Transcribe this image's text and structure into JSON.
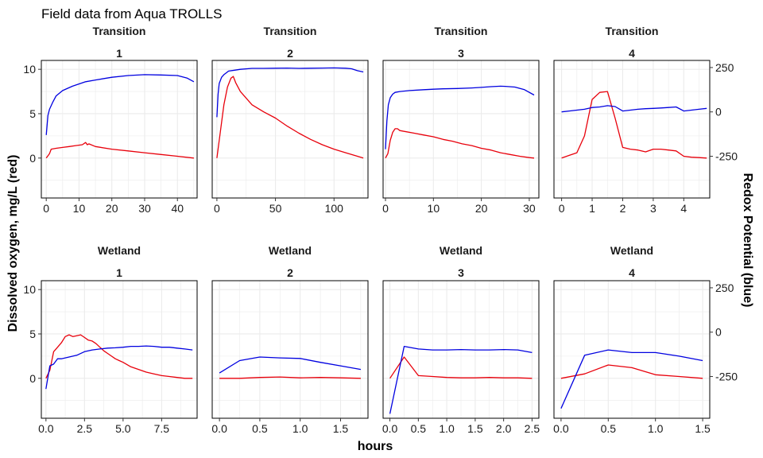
{
  "title": "Field data from Aqua TROLLS",
  "y_left_label": "Dissolved oxygen, mg/L (red)",
  "y_right_label": "Redox Potential (blue)",
  "x_label": "hours",
  "colors": {
    "oxygen": "#e8000b",
    "redox": "#0000e0",
    "grid": "#ebebeb",
    "text": "#000000",
    "axis_text": "#1a1a1a"
  },
  "chart_data": {
    "type": "line",
    "grid": true,
    "y_left": {
      "ylim": [
        -4.5,
        11
      ],
      "ticks": [
        0,
        5,
        10
      ]
    },
    "y_right": {
      "ylim": [
        -485,
        290
      ],
      "ticks": [
        -250,
        0,
        250
      ],
      "note": "secondary axis for redox potential"
    },
    "panels": [
      {
        "group": "Transition",
        "index": "1",
        "xlim": [
          -1.5,
          46
        ],
        "xticks": [
          0,
          10,
          20,
          30,
          40
        ],
        "series": [
          {
            "x": [
              0,
              1,
              1.5,
              3,
              5,
              7,
              9,
              11,
              12,
              12.5,
              13,
              15,
              20,
              25,
              30,
              35,
              40,
              45
            ],
            "y": [
              0,
              0.5,
              1.0,
              1.1,
              1.2,
              1.3,
              1.4,
              1.5,
              1.75,
              1.5,
              1.6,
              1.3,
              1.0,
              0.8,
              0.6,
              0.4,
              0.2,
              0
            ]
          },
          {
            "x": [
              0,
              0.5,
              1,
              2,
              3,
              5,
              8,
              12,
              15,
              20,
              25,
              30,
              35,
              40,
              43,
              45
            ],
            "y": [
              -130,
              -20,
              15,
              55,
              90,
              120,
              145,
              170,
              180,
              195,
              205,
              210,
              208,
              205,
              190,
              170
            ]
          }
        ]
      },
      {
        "group": "Transition",
        "index": "2",
        "xlim": [
          -4,
          129
        ],
        "xticks": [
          0,
          50,
          100
        ],
        "series": [
          {
            "x": [
              0,
              3,
              6,
              9,
              12,
              14,
              16,
              20,
              30,
              40,
              50,
              60,
              70,
              80,
              90,
              100,
              110,
              120,
              125
            ],
            "y": [
              0,
              3,
              6,
              8,
              9,
              9.2,
              8.5,
              7.5,
              6,
              5.2,
              4.5,
              3.6,
              2.8,
              2.1,
              1.5,
              1,
              0.6,
              0.2,
              0
            ]
          },
          {
            "x": [
              0,
              1,
              2,
              4,
              6,
              8,
              10,
              15,
              20,
              30,
              40,
              50,
              60,
              70,
              80,
              90,
              100,
              110,
              115,
              120,
              125
            ],
            "y": [
              -30,
              100,
              160,
              195,
              210,
              220,
              230,
              235,
              240,
              245,
              245,
              246,
              247,
              245,
              246,
              247,
              248,
              246,
              243,
              232,
              225
            ]
          }
        ]
      },
      {
        "group": "Transition",
        "index": "3",
        "xlim": [
          -0.5,
          32
        ],
        "xticks": [
          0,
          10,
          20,
          30
        ],
        "series": [
          {
            "x": [
              0,
              0.5,
              1,
              1.5,
              2,
              2.5,
              3,
              4,
              6,
              8,
              10,
              12,
              14,
              16,
              18,
              20,
              22,
              24,
              26,
              28,
              30,
              31
            ],
            "y": [
              0,
              0.5,
              2,
              2.9,
              3.3,
              3.3,
              3.1,
              3.0,
              2.8,
              2.6,
              2.4,
              2.1,
              1.9,
              1.6,
              1.4,
              1.1,
              0.9,
              0.6,
              0.4,
              0.2,
              0.05,
              0
            ]
          },
          {
            "x": [
              0,
              0.3,
              0.6,
              1,
              1.5,
              2,
              3,
              5,
              8,
              10,
              12,
              15,
              18,
              20,
              22,
              24,
              25,
              27,
              29,
              31
            ],
            "y": [
              -210,
              -50,
              40,
              80,
              100,
              110,
              115,
              120,
              125,
              128,
              130,
              132,
              135,
              138,
              142,
              145,
              144,
              140,
              125,
              95
            ]
          }
        ]
      },
      {
        "group": "Transition",
        "index": "4",
        "xlim": [
          -0.25,
          4.85
        ],
        "xticks": [
          0,
          1,
          2,
          3,
          4
        ],
        "series": [
          {
            "x": [
              0,
              0.25,
              0.5,
              0.75,
              1,
              1.25,
              1.5,
              1.75,
              2,
              2.25,
              2.5,
              2.75,
              3,
              3.25,
              3.5,
              3.75,
              4,
              4.25,
              4.5,
              4.75
            ],
            "y": [
              0,
              0.3,
              0.6,
              2.5,
              6.6,
              7.4,
              7.5,
              4.5,
              1.2,
              1.0,
              0.9,
              0.7,
              1.0,
              1.0,
              0.9,
              0.8,
              0.2,
              0.1,
              0.05,
              0
            ]
          },
          {
            "x": [
              0,
              0.25,
              0.5,
              0.75,
              1,
              1.25,
              1.5,
              1.75,
              2,
              2.25,
              2.5,
              2.75,
              3,
              3.25,
              3.5,
              3.75,
              4,
              4.25,
              4.5,
              4.75
            ],
            "y": [
              0,
              5,
              10,
              15,
              25,
              28,
              35,
              30,
              5,
              10,
              15,
              18,
              20,
              22,
              25,
              28,
              5,
              10,
              15,
              20
            ]
          }
        ]
      },
      {
        "group": "Wetland",
        "index": "1",
        "xlim": [
          -0.3,
          9.8
        ],
        "xticks": [
          0,
          2.5,
          5.0,
          7.5
        ],
        "tick_labels": [
          "0.0",
          "2.5",
          "5.0",
          "7.5"
        ],
        "series": [
          {
            "x": [
              0,
              0.25,
              0.5,
              0.75,
              1,
              1.25,
              1.5,
              1.75,
              2,
              2.25,
              2.5,
              2.75,
              3,
              3.25,
              3.5,
              3.75,
              4,
              4.25,
              4.5,
              4.75,
              5,
              5.5,
              6,
              6.5,
              7,
              7.5,
              8,
              8.5,
              9,
              9.5
            ],
            "y": [
              0,
              0.9,
              3.0,
              3.5,
              4.0,
              4.7,
              4.9,
              4.7,
              4.8,
              4.9,
              4.6,
              4.3,
              4.2,
              3.9,
              3.5,
              3.1,
              2.8,
              2.5,
              2.2,
              2.0,
              1.8,
              1.3,
              1.0,
              0.7,
              0.5,
              0.3,
              0.2,
              0.1,
              0,
              0
            ]
          },
          {
            "x": [
              0,
              0.25,
              0.5,
              0.75,
              1,
              1.5,
              2,
              2.5,
              3,
              3.5,
              4,
              4.5,
              5,
              5.5,
              6,
              6.5,
              7,
              7.5,
              8,
              8.5,
              9,
              9.5
            ],
            "y": [
              -320,
              -190,
              -180,
              -150,
              -150,
              -140,
              -130,
              -110,
              -100,
              -95,
              -90,
              -88,
              -85,
              -80,
              -80,
              -78,
              -80,
              -85,
              -85,
              -90,
              -95,
              -100
            ]
          }
        ]
      },
      {
        "group": "Wetland",
        "index": "2",
        "xlim": [
          -0.09,
          1.84
        ],
        "xticks": [
          0.0,
          0.5,
          1.0,
          1.5
        ],
        "tick_labels": [
          "0.0",
          "0.5",
          "1.0",
          "1.5"
        ],
        "series": [
          {
            "x": [
              0,
              0.25,
              0.5,
              0.75,
              1,
              1.25,
              1.5,
              1.75
            ],
            "y": [
              0,
              0,
              0.1,
              0.15,
              0.05,
              0.1,
              0.05,
              0
            ]
          },
          {
            "x": [
              0,
              0.25,
              0.5,
              0.75,
              1,
              1.25,
              1.5,
              1.75
            ],
            "y": [
              -230,
              -160,
              -140,
              -145,
              -148,
              -170,
              -190,
              -210
            ]
          }
        ]
      },
      {
        "group": "Wetland",
        "index": "3",
        "xlim": [
          -0.12,
          2.62
        ],
        "xticks": [
          0.0,
          0.5,
          1.0,
          1.5,
          2.0,
          2.5
        ],
        "tick_labels": [
          "0.0",
          "0.5",
          "1.0",
          "1.5",
          "2.0",
          "2.5"
        ],
        "series": [
          {
            "x": [
              0,
              0.25,
              0.5,
              0.75,
              1,
              1.25,
              1.5,
              1.75,
              2,
              2.25,
              2.5
            ],
            "y": [
              0,
              2.4,
              0.3,
              0.2,
              0.1,
              0.05,
              0.05,
              0.1,
              0.05,
              0.05,
              0
            ]
          },
          {
            "x": [
              0,
              0.25,
              0.5,
              0.75,
              1,
              1.25,
              1.5,
              1.75,
              2,
              2.25,
              2.5
            ],
            "y": [
              -460,
              -80,
              -95,
              -100,
              -100,
              -98,
              -100,
              -100,
              -98,
              -100,
              -115
            ]
          }
        ]
      },
      {
        "group": "Wetland",
        "index": "4",
        "xlim": [
          -0.075,
          1.575
        ],
        "xticks": [
          0.0,
          0.5,
          1.0,
          1.5
        ],
        "tick_labels": [
          "0.0",
          "0.5",
          "1.0",
          "1.5"
        ],
        "series": [
          {
            "x": [
              0,
              0.25,
              0.5,
              0.75,
              1,
              1.25,
              1.5
            ],
            "y": [
              0,
              0.5,
              1.5,
              1.2,
              0.4,
              0.2,
              0
            ]
          },
          {
            "x": [
              0,
              0.25,
              0.5,
              0.75,
              1,
              1.25,
              1.5
            ],
            "y": [
              -430,
              -130,
              -100,
              -115,
              -115,
              -135,
              -160
            ]
          }
        ]
      }
    ]
  }
}
